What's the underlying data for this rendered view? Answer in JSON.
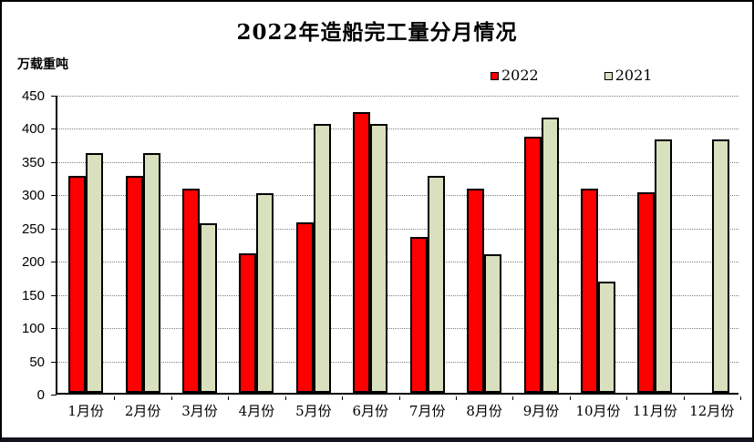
{
  "title": "2022年造船完工量分月情况",
  "y_axis_label": "万载重吨",
  "legend": {
    "items": [
      {
        "label": "2022",
        "color": "#ff0000"
      },
      {
        "label": "2021",
        "color": "#d8e0bd"
      }
    ]
  },
  "chart_data": {
    "type": "bar",
    "title": "2022年造船完工量分月情况",
    "ylabel": "万载重吨",
    "xlabel": "",
    "ylim": [
      0,
      450
    ],
    "y_ticks": [
      0,
      50,
      100,
      150,
      200,
      250,
      300,
      350,
      400,
      450
    ],
    "grid": "horizontal-dotted",
    "legend_position": "top-right",
    "categories": [
      "1月份",
      "2月份",
      "3月份",
      "4月份",
      "5月份",
      "6月份",
      "7月份",
      "8月份",
      "9月份",
      "10月份",
      "11月份",
      "12月份"
    ],
    "series": [
      {
        "name": "2022",
        "color": "#ff0000",
        "values": [
          326,
          326,
          308,
          210,
          256,
          422,
          235,
          308,
          386,
          307,
          302,
          null
        ]
      },
      {
        "name": "2021",
        "color": "#d8e0bd",
        "values": [
          361,
          361,
          255,
          301,
          405,
          405,
          326,
          208,
          414,
          167,
          381,
          382
        ]
      }
    ]
  }
}
